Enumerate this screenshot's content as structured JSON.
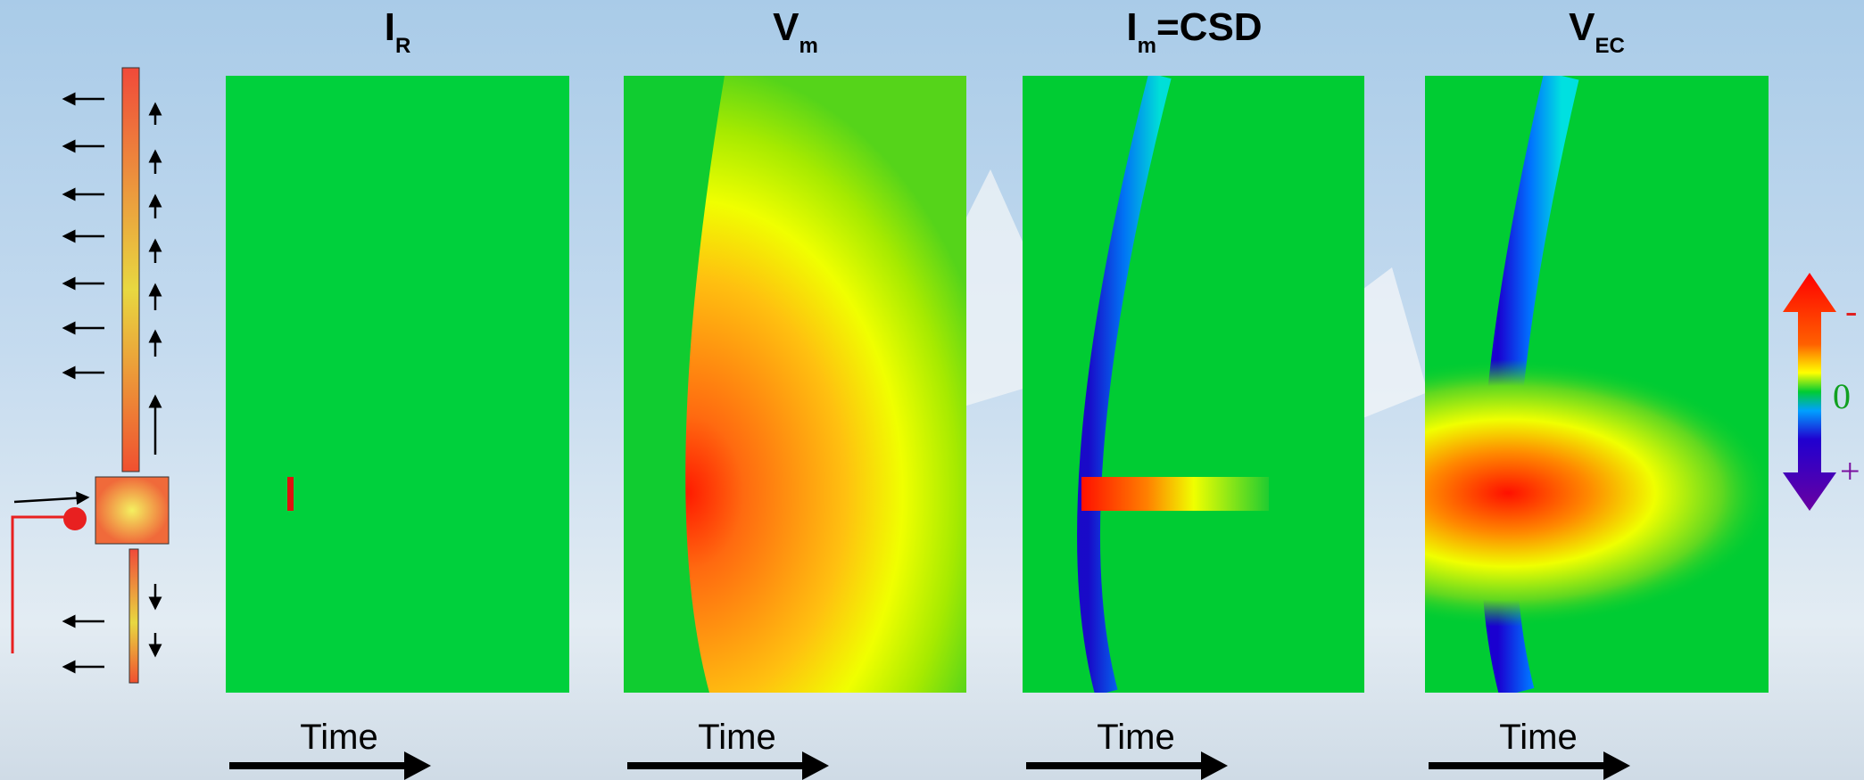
{
  "panels": [
    {
      "title": "I",
      "subscript": "R",
      "time_label": "Time"
    },
    {
      "title": "V",
      "subscript": "m",
      "time_label": "Time"
    },
    {
      "title": "I",
      "subscript": "m",
      "suffix": "=CSD",
      "time_label": "Time"
    },
    {
      "title": "V",
      "subscript": "EC",
      "time_label": "Time"
    }
  ],
  "colorbar": {
    "labels": [
      "-",
      "0",
      "+"
    ]
  }
}
